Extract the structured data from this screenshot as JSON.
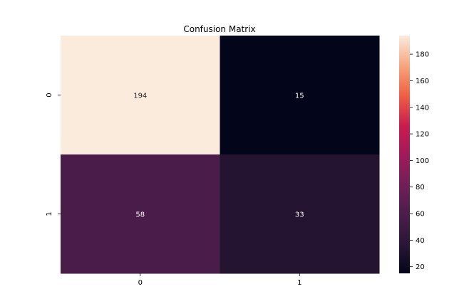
{
  "chart_data": {
    "type": "heatmap",
    "title": "Confusion Matrix",
    "xlabel": "",
    "ylabel": "",
    "x_categories": [
      "0",
      "1"
    ],
    "y_categories": [
      "0",
      "1"
    ],
    "values": [
      [
        194,
        15
      ],
      [
        58,
        33
      ]
    ],
    "colormap": "rocket",
    "colorbar": {
      "vmin": 15,
      "vmax": 194,
      "ticks": [
        20,
        40,
        60,
        80,
        100,
        120,
        140,
        160,
        180
      ],
      "tick_labels": [
        "20",
        "40",
        "60",
        "80",
        "100",
        "120",
        "140",
        "160",
        "180"
      ]
    },
    "grid": false,
    "legend": "colorbar-right"
  }
}
